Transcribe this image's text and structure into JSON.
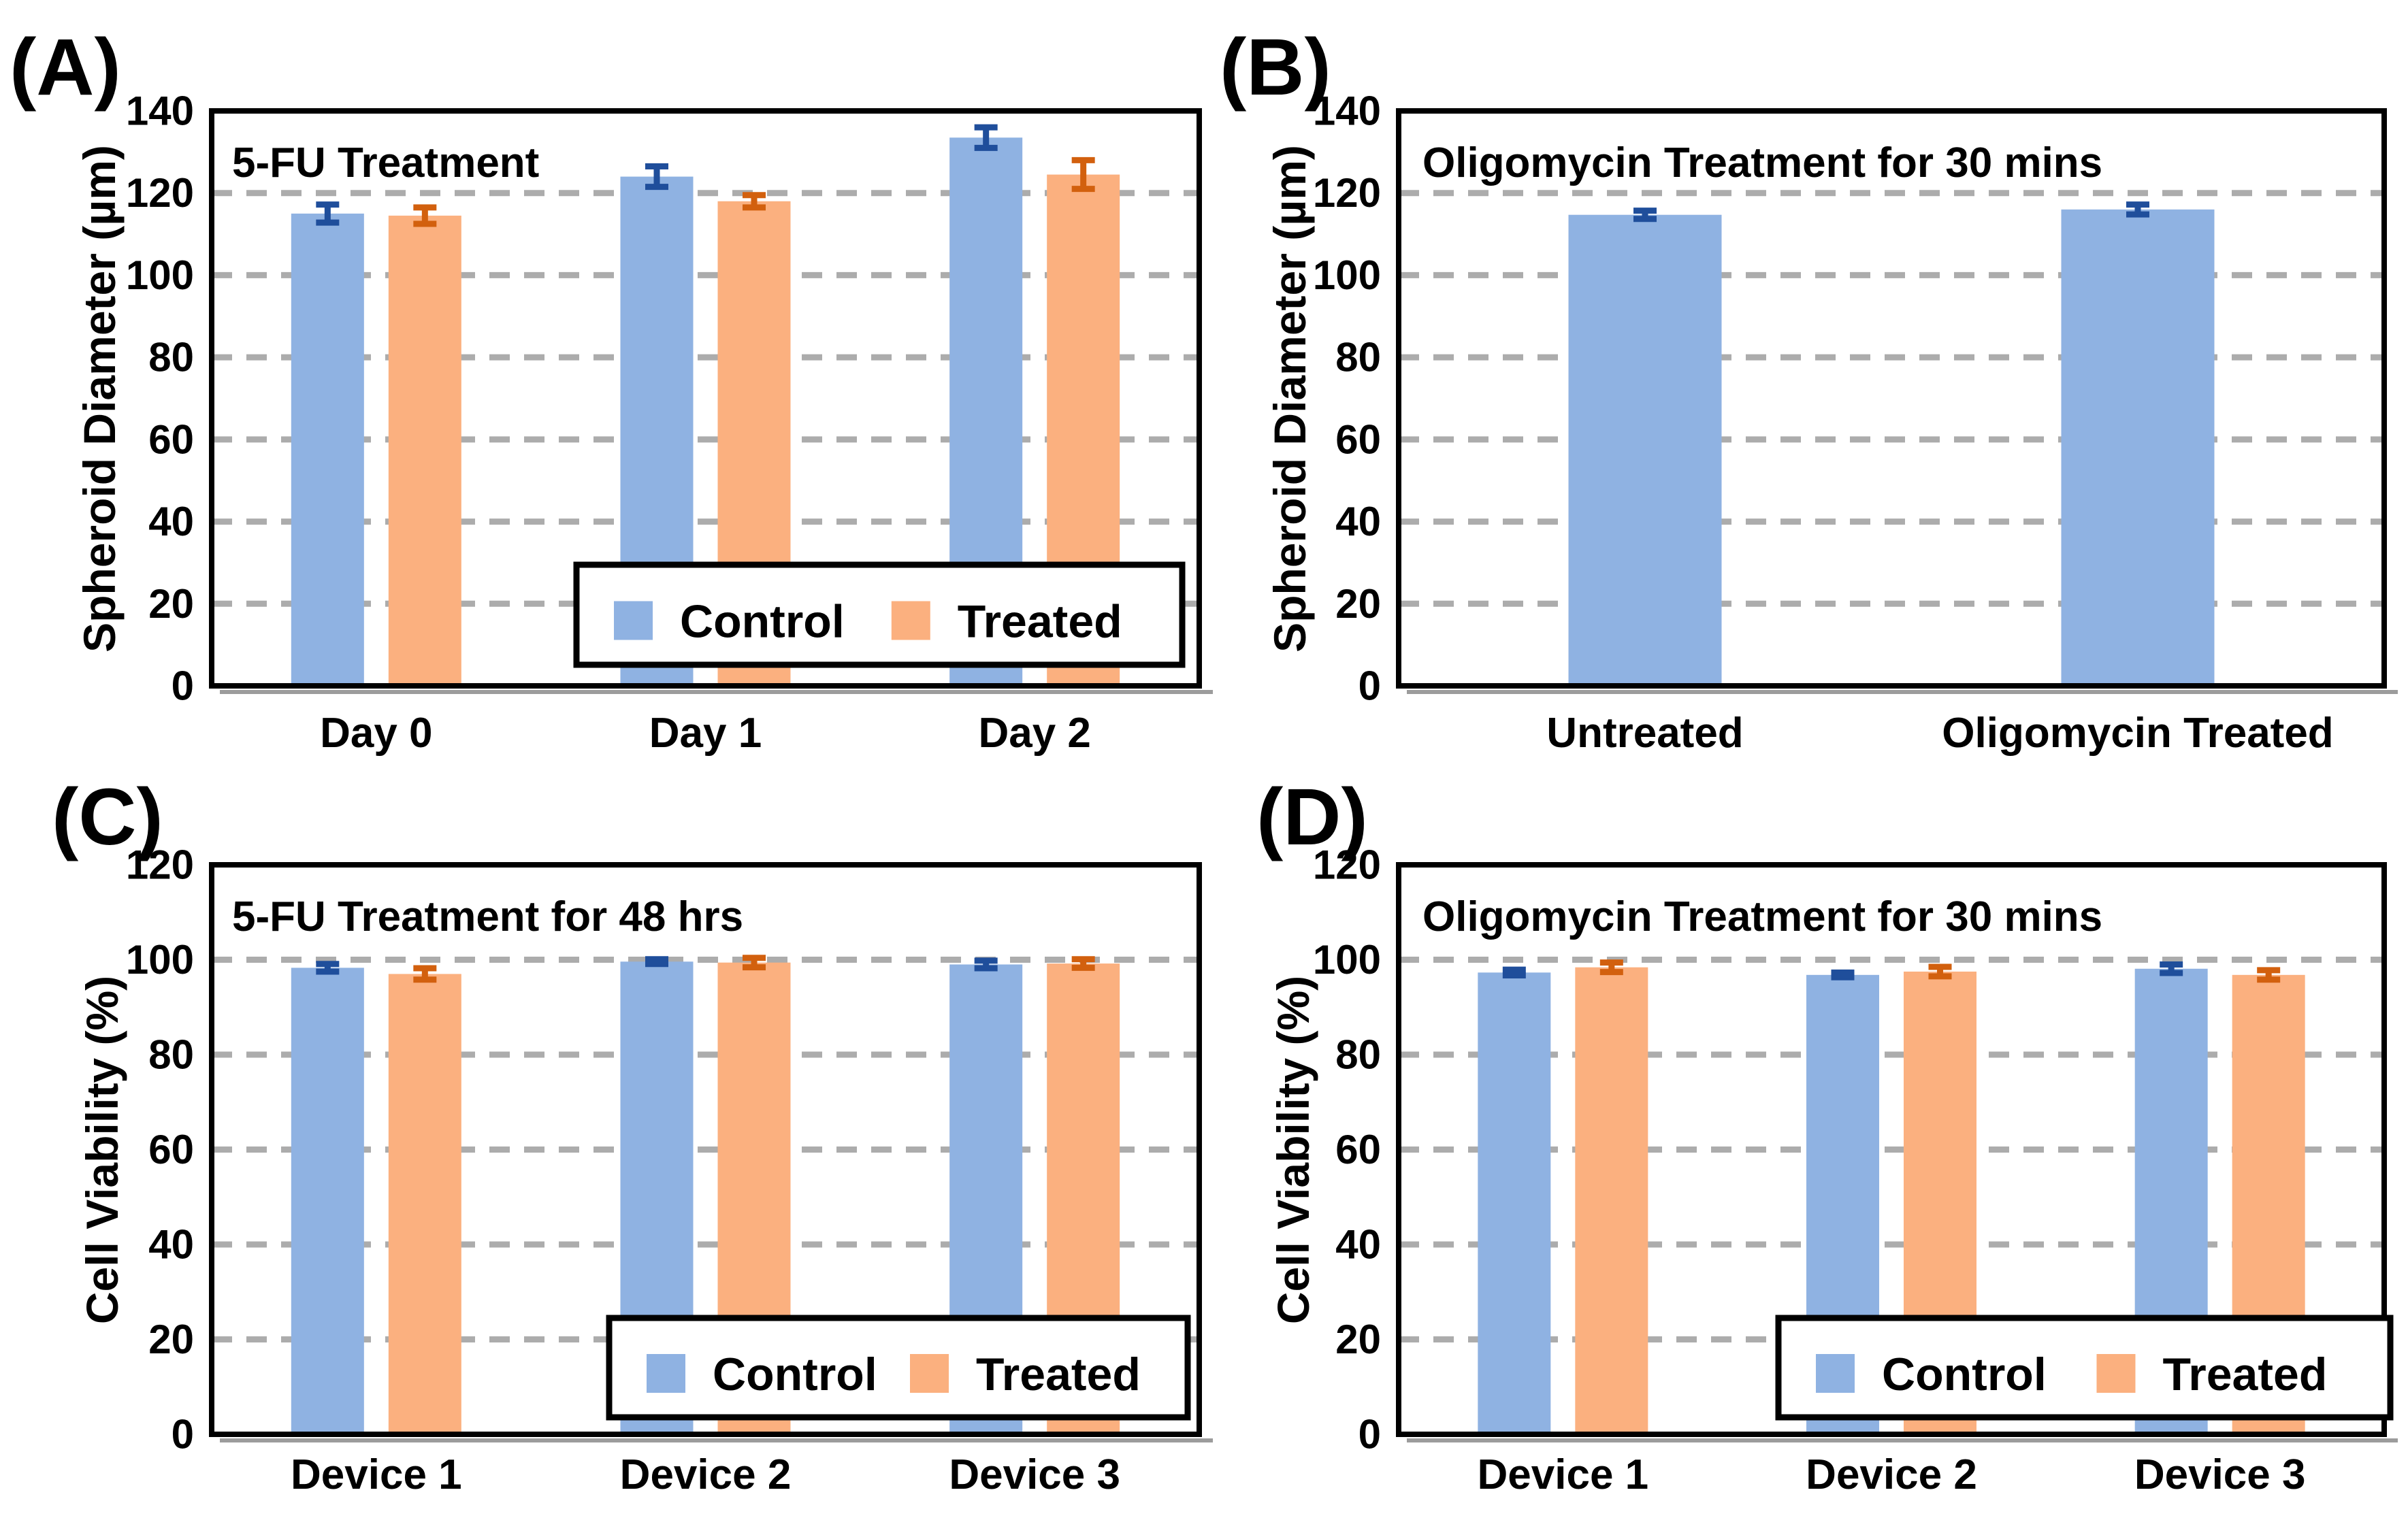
{
  "figure_background": "#FFFFFF",
  "colors": {
    "control_fill": "#8FB2E2",
    "treated_fill": "#FBB07F",
    "control_error": "#1F4E9B",
    "treated_error": "#D2600E",
    "gridline": "#ACACAC",
    "axis": "#000000"
  },
  "chart_data": [
    {
      "type": "bar",
      "panel_label": "(A)",
      "title": "5-FU Treatment",
      "ylabel": "Spheroid Diameter (µm)",
      "xlabel": "",
      "ylim": [
        0,
        140
      ],
      "yticks": [
        0,
        20,
        40,
        60,
        80,
        100,
        120,
        140
      ],
      "grid": "dashed-horizontal",
      "legend_visible": true,
      "legend_position": "inside-bottom-right",
      "categories": [
        "Day 0",
        "Day 1",
        "Day 2"
      ],
      "series": [
        {
          "name": "Control",
          "color": "#8FB2E2",
          "error_color": "#1F4E9B",
          "values": [
            115,
            124,
            133.5
          ],
          "errors": [
            2.2,
            2.5,
            2.5
          ]
        },
        {
          "name": "Treated",
          "color": "#FBB07F",
          "error_color": "#D2600E",
          "values": [
            114.5,
            118,
            124.5
          ],
          "errors": [
            2.0,
            1.5,
            3.5
          ]
        }
      ]
    },
    {
      "type": "bar",
      "panel_label": "(B)",
      "title": "Oligomycin Treatment for 30 mins",
      "ylabel": "Spheroid Diameter (µm)",
      "xlabel": "",
      "ylim": [
        0,
        140
      ],
      "yticks": [
        0,
        20,
        40,
        60,
        80,
        100,
        120,
        140
      ],
      "grid": "dashed-horizontal",
      "legend_visible": false,
      "legend_position": "none",
      "categories": [
        "Untreated",
        "Oligomycin Treated"
      ],
      "series": [
        {
          "name": "",
          "color": "#8FB2E2",
          "error_color": "#1F4E9B",
          "values": [
            114.7,
            116.0
          ],
          "errors": [
            1.0,
            1.2
          ]
        }
      ]
    },
    {
      "type": "bar",
      "panel_label": "(C)",
      "title": "5-FU Treatment for 48 hrs",
      "ylabel": "Cell Viability (%)",
      "xlabel": "",
      "ylim": [
        0,
        120
      ],
      "yticks": [
        0,
        20,
        40,
        60,
        80,
        100,
        120
      ],
      "grid": "dashed-horizontal",
      "legend_visible": true,
      "legend_position": "inside-bottom-right",
      "categories": [
        "Device 1",
        "Device 2",
        "Device 3"
      ],
      "series": [
        {
          "name": "Control",
          "color": "#8FB2E2",
          "error_color": "#1F4E9B",
          "values": [
            98.3,
            99.6,
            99.0
          ],
          "errors": [
            0.8,
            0.5,
            0.8
          ]
        },
        {
          "name": "Treated",
          "color": "#FBB07F",
          "error_color": "#D2600E",
          "values": [
            97.0,
            99.4,
            99.2
          ],
          "errors": [
            1.2,
            1.0,
            0.9
          ]
        }
      ]
    },
    {
      "type": "bar",
      "panel_label": "(D)",
      "title": "Oligomycin Treatment for 30 mins",
      "ylabel": "Cell Viability (%)",
      "xlabel": "",
      "ylim": [
        0,
        120
      ],
      "yticks": [
        0,
        20,
        40,
        60,
        80,
        100,
        120
      ],
      "grid": "dashed-horizontal",
      "legend_visible": true,
      "legend_position": "inside-bottom-right",
      "categories": [
        "Device 1",
        "Device 2",
        "Device 3"
      ],
      "series": [
        {
          "name": "Control",
          "color": "#8FB2E2",
          "error_color": "#1F4E9B",
          "values": [
            97.3,
            96.8,
            98.1
          ],
          "errors": [
            0.6,
            0.5,
            0.9
          ]
        },
        {
          "name": "Treated",
          "color": "#FBB07F",
          "error_color": "#D2600E",
          "values": [
            98.4,
            97.5,
            96.8
          ],
          "errors": [
            1.0,
            1.0,
            1.0
          ]
        }
      ]
    }
  ]
}
